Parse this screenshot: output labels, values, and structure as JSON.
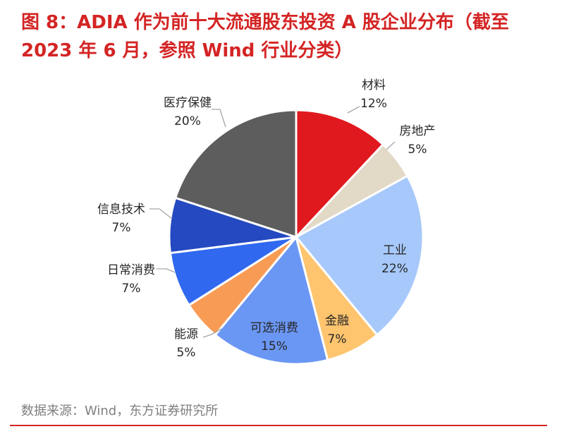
{
  "title": "图 8：ADIA 作为前十大流通股东投资 A 股企业分布（截至 2023 年 6 月，参照 Wind 行业分类）",
  "source": "数据来源：Wind，东方证券研究所",
  "colors": {
    "accent": "#d42424",
    "source_text": "#7f7f7f"
  },
  "chart_data": {
    "type": "pie",
    "title": "",
    "start_angle_deg": 0,
    "direction": "clockwise",
    "slices": [
      {
        "label": "材料",
        "value": 12,
        "pct_label": "12%",
        "color": "#e0191e"
      },
      {
        "label": "房地产",
        "value": 5,
        "pct_label": "5%",
        "color": "#e2d9c6"
      },
      {
        "label": "工业",
        "value": 22,
        "pct_label": "22%",
        "color": "#a7c8fa"
      },
      {
        "label": "金融",
        "value": 7,
        "pct_label": "7%",
        "color": "#ffc46e"
      },
      {
        "label": "可选消费",
        "value": 15,
        "pct_label": "15%",
        "color": "#6b97f4"
      },
      {
        "label": "能源",
        "value": 5,
        "pct_label": "5%",
        "color": "#f89b55"
      },
      {
        "label": "日常消费",
        "value": 7,
        "pct_label": "7%",
        "color": "#3069ef"
      },
      {
        "label": "信息技术",
        "value": 7,
        "pct_label": "7%",
        "color": "#2449c0"
      },
      {
        "label": "医疗保健",
        "value": 20,
        "pct_label": "20%",
        "color": "#5d5d5d"
      }
    ]
  }
}
